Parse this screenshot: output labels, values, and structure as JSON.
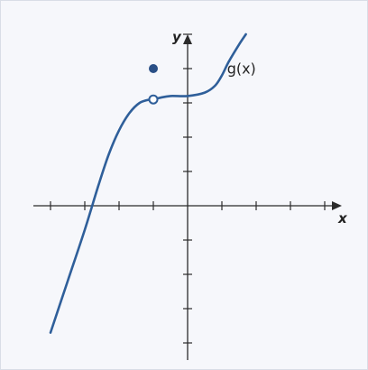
{
  "chart_data": {
    "type": "line",
    "xlabel": "x",
    "ylabel": "y",
    "xlim": [
      -4.5,
      4.5
    ],
    "ylim": [
      -4.5,
      5
    ],
    "grid": false,
    "function_label": "g(x)",
    "series": [
      {
        "name": "g(x)",
        "x": [
          -4,
          -3.5,
          -3,
          -2.6,
          -2.3,
          -2,
          -1.7,
          -1.4,
          -1.1,
          -1,
          -0.8,
          -0.5,
          0,
          0.5,
          0.8,
          1,
          1.2,
          1.5,
          1.7
        ],
        "y": [
          -3.7,
          -2.2,
          -0.7,
          0.6,
          1.5,
          2.2,
          2.7,
          3.0,
          3.1,
          3.1,
          3.15,
          3.2,
          3.2,
          3.3,
          3.5,
          3.8,
          4.2,
          4.7,
          5.0
        ]
      }
    ],
    "open_point": {
      "x": -1,
      "y": 3.1
    },
    "closed_point": {
      "x": -1,
      "y": 4.0
    },
    "colors": {
      "curve": "#2f5f9a",
      "axes": "#2b2b2b"
    }
  }
}
